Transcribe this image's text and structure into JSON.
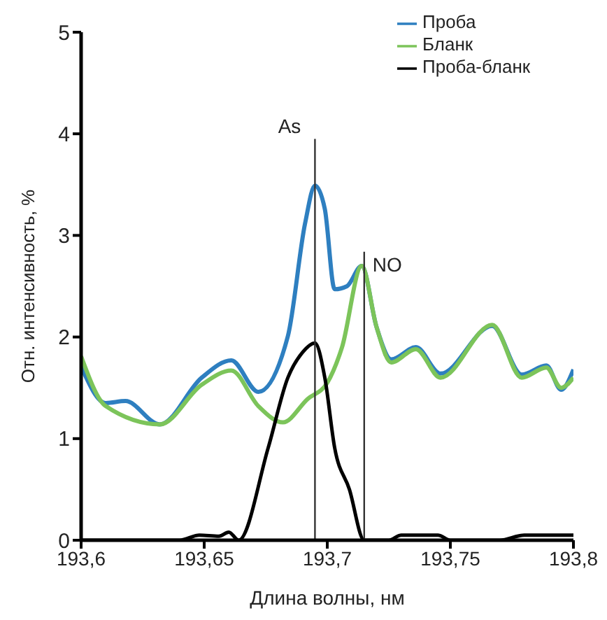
{
  "chart_data": {
    "type": "line",
    "xlabel": "Длина волны, нм",
    "ylabel": "Отн. интенсивность, %",
    "xlim": [
      193.6,
      193.8
    ],
    "ylim": [
      0,
      5
    ],
    "xticks": [
      {
        "value": 193.6,
        "label": "193,6"
      },
      {
        "value": 193.65,
        "label": "193,65"
      },
      {
        "value": 193.7,
        "label": "193,7"
      },
      {
        "value": 193.75,
        "label": "193,75"
      },
      {
        "value": 193.8,
        "label": "193,8"
      }
    ],
    "yticks": [
      0,
      1,
      2,
      3,
      4,
      5
    ],
    "grid": false,
    "legend": "top right",
    "marker": "none",
    "line_style": "solid",
    "annotations": [
      "As",
      "NO"
    ],
    "series": [
      {
        "name": "Проба",
        "color": "#2e7fc0",
        "x": [
          193.6,
          193.61,
          193.618,
          193.632,
          193.649,
          193.661,
          193.672,
          193.684,
          193.691,
          193.695,
          193.699,
          193.703,
          193.708,
          193.714,
          193.72,
          193.726,
          193.736,
          193.746,
          193.767,
          193.779,
          193.789,
          193.795,
          193.8
        ],
        "values": [
          1.71,
          1.35,
          1.37,
          1.14,
          1.6,
          1.77,
          1.46,
          2.01,
          3.12,
          3.49,
          3.26,
          2.47,
          2.5,
          2.7,
          2.1,
          1.78,
          1.9,
          1.64,
          2.11,
          1.63,
          1.72,
          1.48,
          1.68
        ]
      },
      {
        "name": "Бланк",
        "color": "#7cc45a",
        "x": [
          193.6,
          193.61,
          193.632,
          193.649,
          193.661,
          193.672,
          193.682,
          193.692,
          193.7,
          193.706,
          193.714,
          193.72,
          193.726,
          193.736,
          193.746,
          193.767,
          193.779,
          193.789,
          193.795,
          193.8
        ],
        "values": [
          1.81,
          1.32,
          1.14,
          1.53,
          1.67,
          1.32,
          1.16,
          1.39,
          1.55,
          1.9,
          2.7,
          2.1,
          1.75,
          1.88,
          1.6,
          2.12,
          1.6,
          1.7,
          1.5,
          1.6
        ]
      },
      {
        "name": "Проба-бланк",
        "color": "#000000",
        "x": [
          193.6,
          193.64,
          193.648,
          193.656,
          193.66,
          193.664,
          193.676,
          193.684,
          193.69,
          193.695,
          193.699,
          193.703,
          193.709,
          193.715,
          193.725,
          193.73,
          193.745,
          193.75,
          193.77,
          193.78,
          193.8
        ],
        "values": [
          0,
          0,
          0.05,
          0.04,
          0.08,
          0,
          0.91,
          1.6,
          1.85,
          1.94,
          1.6,
          0.91,
          0.5,
          0,
          0,
          0.05,
          0.05,
          0,
          0,
          0.05,
          0.05
        ]
      },
      {
        "color": "#333333",
        "x": [
          193.695,
          193.695
        ],
        "values": [
          0,
          3.95
        ]
      },
      {
        "color": "#333333",
        "x": [
          193.715,
          193.715
        ],
        "values": [
          0,
          2.84
        ]
      }
    ]
  }
}
